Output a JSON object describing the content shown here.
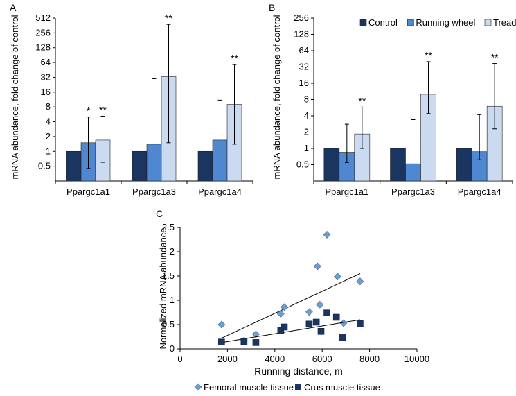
{
  "colors": {
    "control": "#1a3560",
    "running_wheel": "#4f88d0",
    "treadmill": "#c9daf1",
    "femoral": "#6d9ed8",
    "crus": "#1a3560",
    "axis": "#000000",
    "grid": "#d0d0d0"
  },
  "chart_data": [
    {
      "panel": "A",
      "type": "bar",
      "scale": "log2",
      "ylabel": "mRNA abundance, fold change of control",
      "yticks": [
        "0.5",
        "1",
        "2",
        "4",
        "8",
        "16",
        "32",
        "64",
        "128",
        "256",
        "512"
      ],
      "ylim": [
        0.25,
        512
      ],
      "categories": [
        "Ppargc1a1",
        "Ppargc1a3",
        "Ppargc1a4"
      ],
      "series": [
        {
          "name": "Control",
          "values": [
            1,
            1,
            1
          ],
          "err_hi": [
            null,
            null,
            null
          ],
          "err_lo": [
            null,
            null,
            null
          ]
        },
        {
          "name": "Running wheel",
          "values": [
            1.5,
            1.4,
            1.7
          ],
          "err_hi": [
            5,
            30,
            11
          ],
          "err_lo": [
            0.45,
            null,
            null
          ]
        },
        {
          "name": "Treadmill",
          "values": [
            1.7,
            33,
            9
          ],
          "err_hi": [
            5.2,
            380,
            58
          ],
          "err_lo": [
            0.6,
            1.5,
            1.4
          ]
        }
      ],
      "annotations": [
        {
          "category": "Ppargc1a1",
          "series": "Running wheel",
          "text": "*"
        },
        {
          "category": "Ppargc1a1",
          "series": "Treadmill",
          "text": "**"
        },
        {
          "category": "Ppargc1a3",
          "series": "Treadmill",
          "text": "**"
        },
        {
          "category": "Ppargc1a4",
          "series": "Treadmill",
          "text": "**"
        }
      ]
    },
    {
      "panel": "B",
      "type": "bar",
      "scale": "log2",
      "ylabel": "mRNA abundance, fold change of control",
      "yticks": [
        "0.5",
        "1",
        "2",
        "4",
        "8",
        "16",
        "32",
        "64",
        "128",
        "256"
      ],
      "ylim": [
        0.25,
        256
      ],
      "legend": [
        "Control",
        "Running wheel",
        "Treadmill"
      ],
      "legend_position": "top-right",
      "categories": [
        "Ppargc1a1",
        "Ppargc1a3",
        "Ppargc1a4"
      ],
      "series": [
        {
          "name": "Control",
          "values": [
            1,
            1,
            1
          ],
          "err_hi": [
            null,
            null,
            null
          ],
          "err_lo": [
            null,
            null,
            null
          ]
        },
        {
          "name": "Running wheel",
          "values": [
            0.85,
            0.52,
            0.87
          ],
          "err_hi": [
            2.8,
            3.4,
            4.2
          ],
          "err_lo": [
            0.55,
            null,
            0.62
          ]
        },
        {
          "name": "Treadmill",
          "values": [
            1.85,
            10,
            6
          ],
          "err_hi": [
            5.8,
            40,
            37
          ],
          "err_lo": [
            1,
            4.4,
            2.3
          ]
        }
      ],
      "annotations": [
        {
          "category": "Ppargc1a1",
          "series": "Treadmill",
          "text": "**"
        },
        {
          "category": "Ppargc1a3",
          "series": "Treadmill",
          "text": "**"
        },
        {
          "category": "Ppargc1a4",
          "series": "Treadmill",
          "text": "**"
        }
      ]
    },
    {
      "panel": "C",
      "type": "scatter",
      "xlabel": "Running distance, m",
      "ylabel": "Normalized mRNA abundance",
      "xticks": [
        "0",
        "2000",
        "4000",
        "6000",
        "8000",
        "10000"
      ],
      "yticks": [
        "0",
        "0.5",
        "1",
        "1.5",
        "2",
        "2.5"
      ],
      "xlim": [
        0,
        10000
      ],
      "ylim": [
        0,
        2.5
      ],
      "legend": [
        "Femoral muscle tissue",
        "Crus muscle tissue"
      ],
      "legend_position": "bottom",
      "series": [
        {
          "name": "Femoral muscle tissue",
          "marker": "diamond",
          "points": [
            [
              1750,
              0.5
            ],
            [
              2700,
              0.17
            ],
            [
              3200,
              0.3
            ],
            [
              4250,
              0.72
            ],
            [
              4400,
              0.86
            ],
            [
              5450,
              0.76
            ],
            [
              5800,
              1.7
            ],
            [
              5900,
              0.91
            ],
            [
              6200,
              2.35
            ],
            [
              6650,
              1.49
            ],
            [
              6900,
              0.53
            ],
            [
              7600,
              1.39
            ]
          ],
          "trendline": [
            [
              1750,
              0.22
            ],
            [
              7600,
              1.55
            ]
          ]
        },
        {
          "name": "Crus muscle tissue",
          "marker": "square",
          "points": [
            [
              1750,
              0.14
            ],
            [
              2700,
              0.15
            ],
            [
              3200,
              0.13
            ],
            [
              4250,
              0.38
            ],
            [
              4400,
              0.45
            ],
            [
              5450,
              0.51
            ],
            [
              5750,
              0.55
            ],
            [
              5950,
              0.36
            ],
            [
              6200,
              0.74
            ],
            [
              6600,
              0.65
            ],
            [
              6850,
              0.23
            ],
            [
              7600,
              0.52
            ]
          ],
          "trendline": [
            [
              1750,
              0.13
            ],
            [
              7600,
              0.6
            ]
          ]
        }
      ]
    }
  ],
  "panel_labels": {
    "a": "A",
    "b": "B",
    "c": "C"
  }
}
